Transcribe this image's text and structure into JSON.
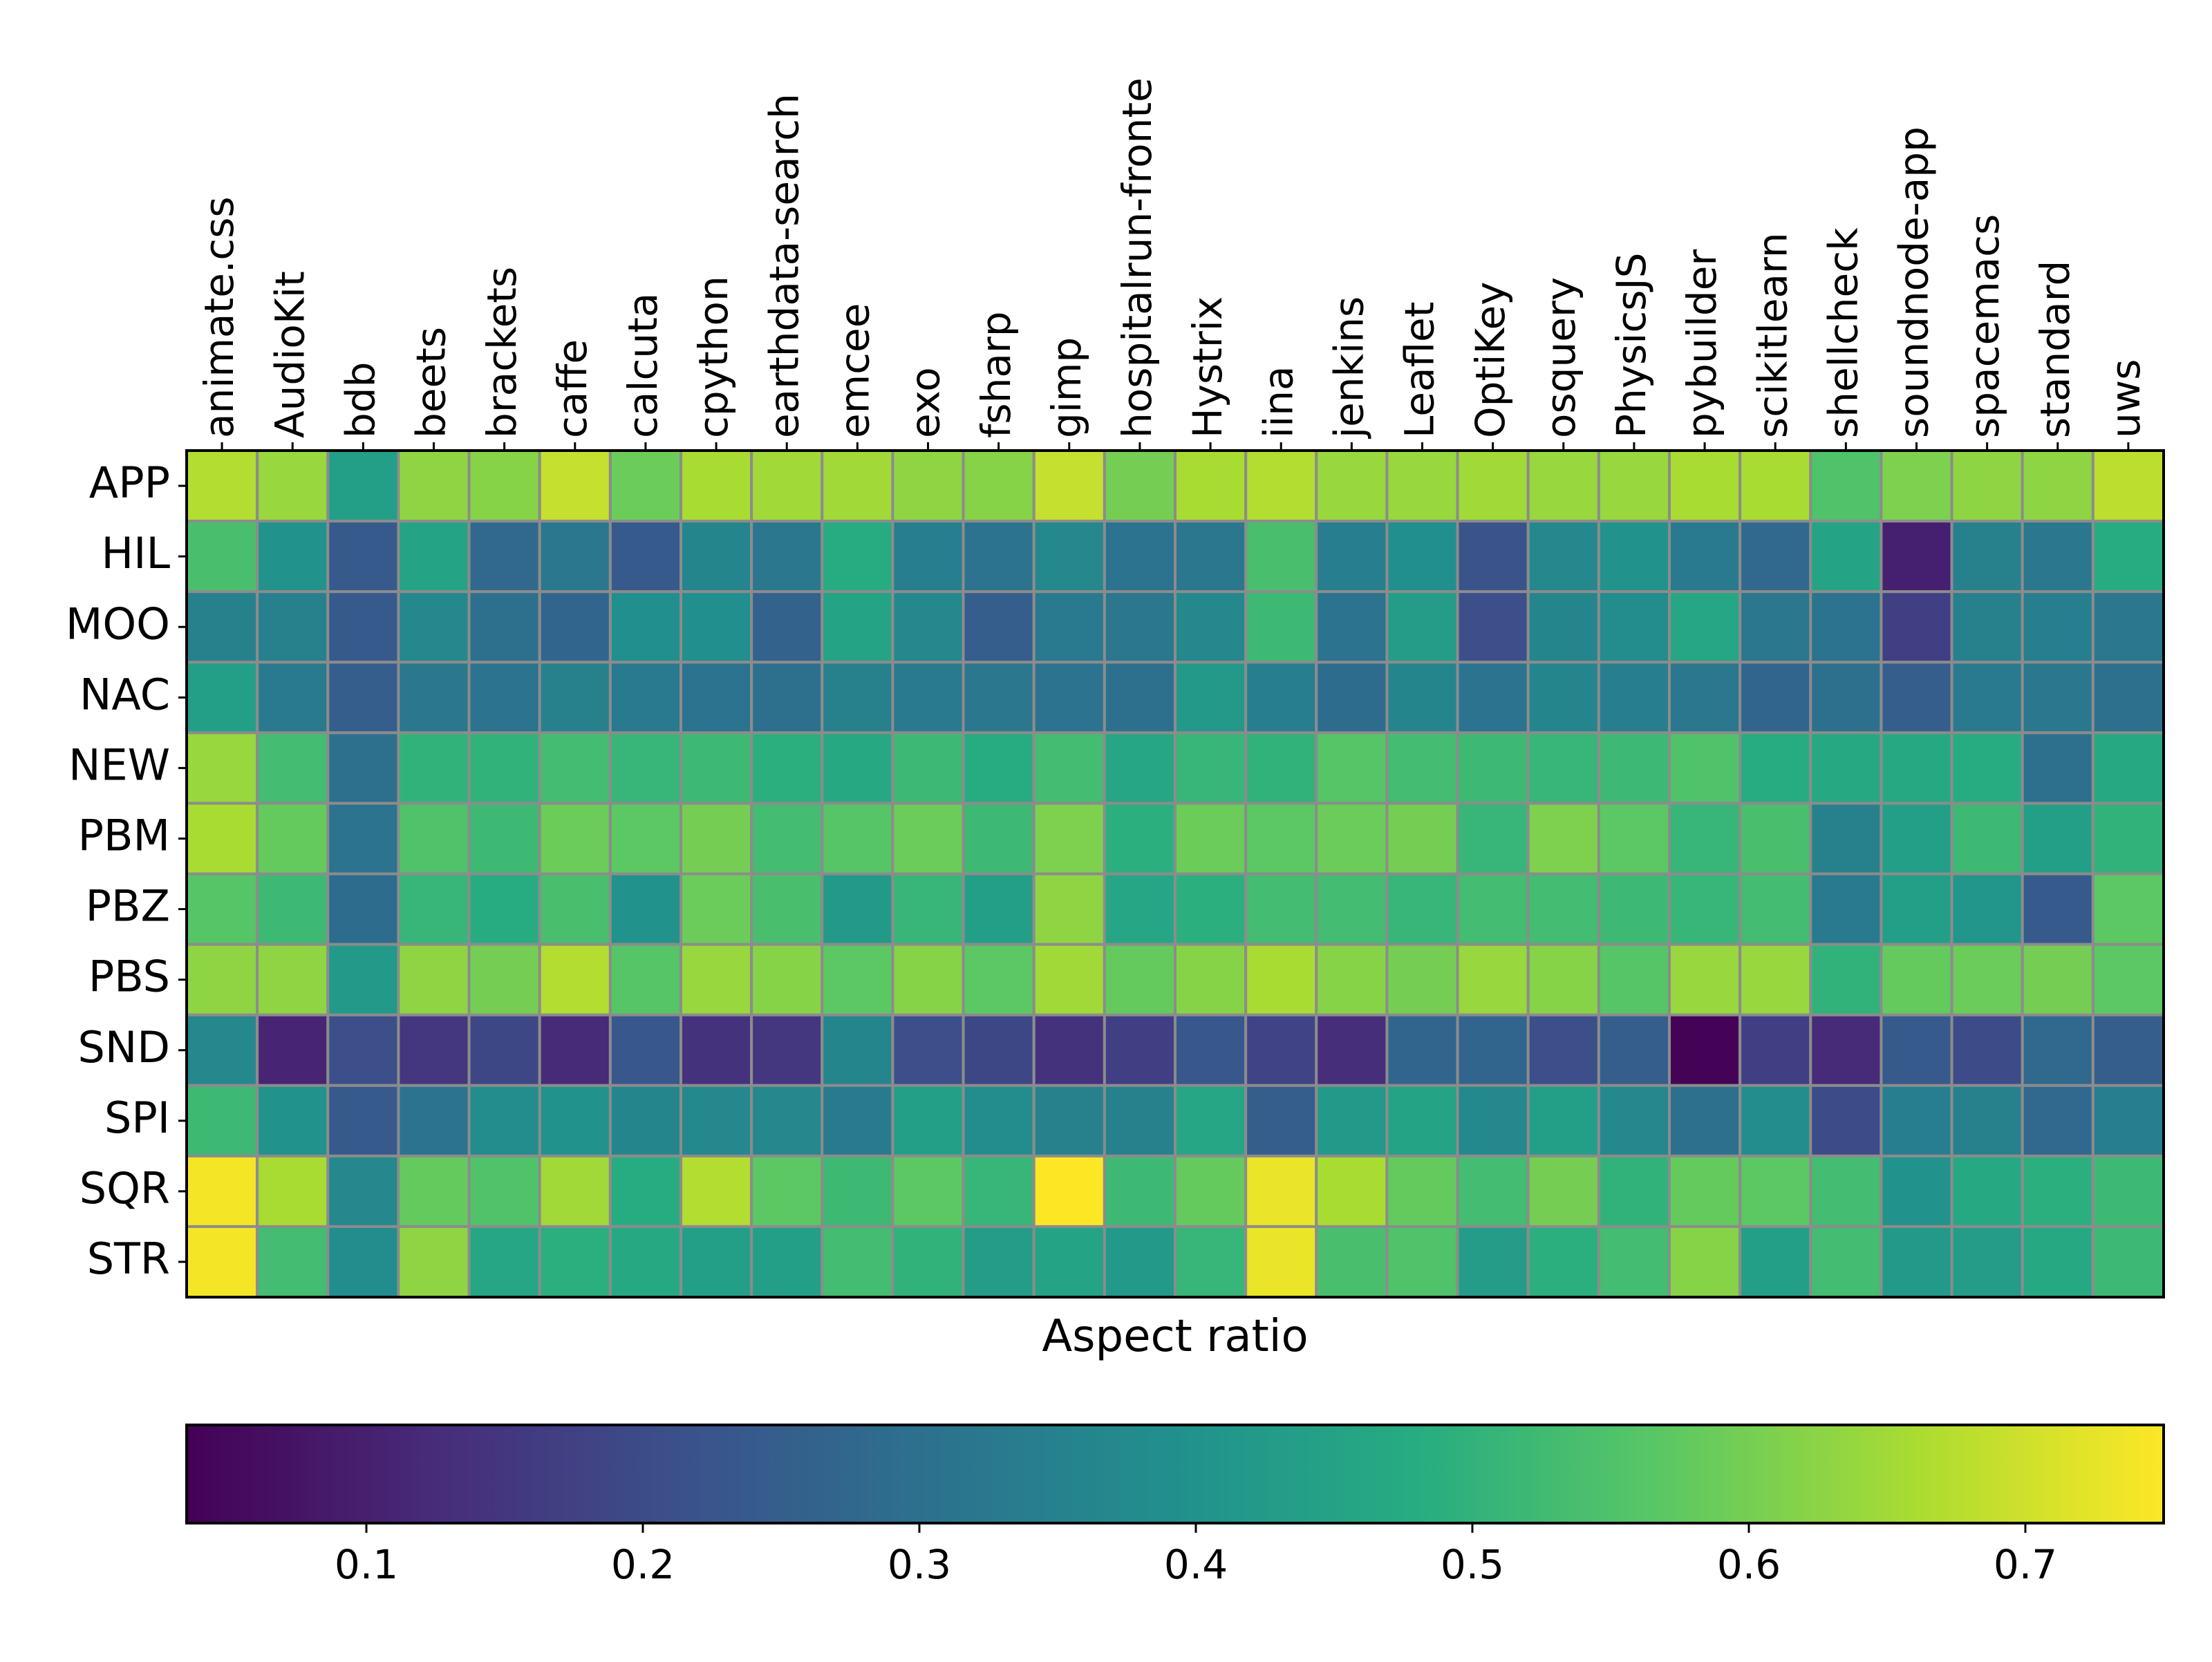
{
  "chart_data": {
    "type": "heatmap",
    "title": "",
    "xlabel": "Aspect ratio",
    "ylabel": "",
    "columns": [
      "animate.css",
      "AudioKit",
      "bdb",
      "beets",
      "brackets",
      "caffe",
      "calcuta",
      "cpython",
      "earthdata-search",
      "emcee",
      "exo",
      "fsharp",
      "gimp",
      "hospitalrun-fronte",
      "Hystrix",
      "iina",
      "jenkins",
      "Leaflet",
      "OptiKey",
      "osquery",
      "PhysicsJS",
      "pybuilder",
      "scikitlearn",
      "shellcheck",
      "soundnode-app",
      "spacemacs",
      "standard",
      "uws"
    ],
    "rows": [
      "APP",
      "HIL",
      "MOO",
      "NAC",
      "NEW",
      "PBM",
      "PBZ",
      "PBS",
      "SND",
      "SPI",
      "SQR",
      "STR"
    ],
    "values": [
      [
        0.67,
        0.64,
        0.44,
        0.63,
        0.62,
        0.69,
        0.59,
        0.66,
        0.65,
        0.65,
        0.63,
        0.62,
        0.69,
        0.6,
        0.66,
        0.67,
        0.64,
        0.64,
        0.65,
        0.64,
        0.64,
        0.66,
        0.66,
        0.55,
        0.61,
        0.63,
        0.63,
        0.68
      ],
      [
        0.54,
        0.4,
        0.24,
        0.45,
        0.28,
        0.32,
        0.24,
        0.36,
        0.32,
        0.48,
        0.34,
        0.31,
        0.37,
        0.31,
        0.32,
        0.54,
        0.34,
        0.39,
        0.22,
        0.37,
        0.4,
        0.33,
        0.28,
        0.45,
        0.1,
        0.35,
        0.32,
        0.48
      ],
      [
        0.35,
        0.35,
        0.24,
        0.37,
        0.3,
        0.27,
        0.39,
        0.39,
        0.26,
        0.45,
        0.37,
        0.25,
        0.33,
        0.32,
        0.37,
        0.52,
        0.31,
        0.43,
        0.21,
        0.36,
        0.38,
        0.46,
        0.32,
        0.31,
        0.17,
        0.35,
        0.34,
        0.32
      ],
      [
        0.44,
        0.33,
        0.25,
        0.32,
        0.31,
        0.35,
        0.33,
        0.31,
        0.3,
        0.35,
        0.33,
        0.32,
        0.31,
        0.3,
        0.42,
        0.34,
        0.29,
        0.36,
        0.31,
        0.36,
        0.34,
        0.32,
        0.27,
        0.3,
        0.25,
        0.33,
        0.32,
        0.3
      ],
      [
        0.64,
        0.53,
        0.3,
        0.5,
        0.5,
        0.53,
        0.51,
        0.52,
        0.49,
        0.47,
        0.52,
        0.48,
        0.53,
        0.46,
        0.51,
        0.5,
        0.56,
        0.53,
        0.52,
        0.51,
        0.52,
        0.55,
        0.48,
        0.47,
        0.47,
        0.48,
        0.3,
        0.47
      ],
      [
        0.66,
        0.58,
        0.31,
        0.55,
        0.52,
        0.59,
        0.57,
        0.6,
        0.53,
        0.56,
        0.59,
        0.52,
        0.61,
        0.49,
        0.59,
        0.57,
        0.59,
        0.6,
        0.51,
        0.61,
        0.57,
        0.51,
        0.54,
        0.35,
        0.44,
        0.52,
        0.44,
        0.5
      ],
      [
        0.56,
        0.52,
        0.29,
        0.51,
        0.48,
        0.54,
        0.4,
        0.59,
        0.54,
        0.42,
        0.51,
        0.44,
        0.63,
        0.46,
        0.49,
        0.53,
        0.53,
        0.51,
        0.53,
        0.53,
        0.52,
        0.51,
        0.53,
        0.33,
        0.44,
        0.41,
        0.24,
        0.57
      ],
      [
        0.63,
        0.63,
        0.42,
        0.63,
        0.6,
        0.67,
        0.56,
        0.64,
        0.62,
        0.57,
        0.62,
        0.57,
        0.65,
        0.58,
        0.62,
        0.66,
        0.62,
        0.6,
        0.64,
        0.62,
        0.56,
        0.64,
        0.64,
        0.5,
        0.58,
        0.59,
        0.6,
        0.57
      ],
      [
        0.37,
        0.11,
        0.21,
        0.15,
        0.19,
        0.12,
        0.23,
        0.14,
        0.15,
        0.36,
        0.21,
        0.19,
        0.14,
        0.17,
        0.23,
        0.18,
        0.13,
        0.27,
        0.27,
        0.21,
        0.25,
        0.04,
        0.17,
        0.12,
        0.24,
        0.2,
        0.28,
        0.25
      ],
      [
        0.52,
        0.4,
        0.24,
        0.31,
        0.38,
        0.4,
        0.36,
        0.37,
        0.37,
        0.33,
        0.44,
        0.38,
        0.35,
        0.35,
        0.46,
        0.25,
        0.42,
        0.45,
        0.37,
        0.44,
        0.37,
        0.3,
        0.38,
        0.2,
        0.34,
        0.35,
        0.28,
        0.34
      ],
      [
        0.74,
        0.66,
        0.37,
        0.58,
        0.55,
        0.65,
        0.48,
        0.67,
        0.57,
        0.52,
        0.57,
        0.51,
        0.75,
        0.52,
        0.58,
        0.73,
        0.66,
        0.58,
        0.53,
        0.6,
        0.5,
        0.58,
        0.57,
        0.53,
        0.4,
        0.47,
        0.49,
        0.52
      ],
      [
        0.74,
        0.53,
        0.38,
        0.63,
        0.46,
        0.49,
        0.47,
        0.44,
        0.44,
        0.53,
        0.5,
        0.43,
        0.45,
        0.42,
        0.51,
        0.73,
        0.54,
        0.55,
        0.43,
        0.49,
        0.53,
        0.62,
        0.44,
        0.53,
        0.42,
        0.43,
        0.47,
        0.52
      ]
    ],
    "colorbar": {
      "colormap": "viridis",
      "vmin": 0.035,
      "vmax": 0.75,
      "ticks": [
        0.1,
        0.2,
        0.3,
        0.4,
        0.5,
        0.6,
        0.7
      ],
      "tick_labels": [
        "0.1",
        "0.2",
        "0.3",
        "0.4",
        "0.5",
        "0.6",
        "0.7"
      ],
      "orientation": "horizontal"
    },
    "grid": true,
    "colors": {
      "cell_border": "#8c8c8c",
      "axes": "#000000"
    }
  }
}
